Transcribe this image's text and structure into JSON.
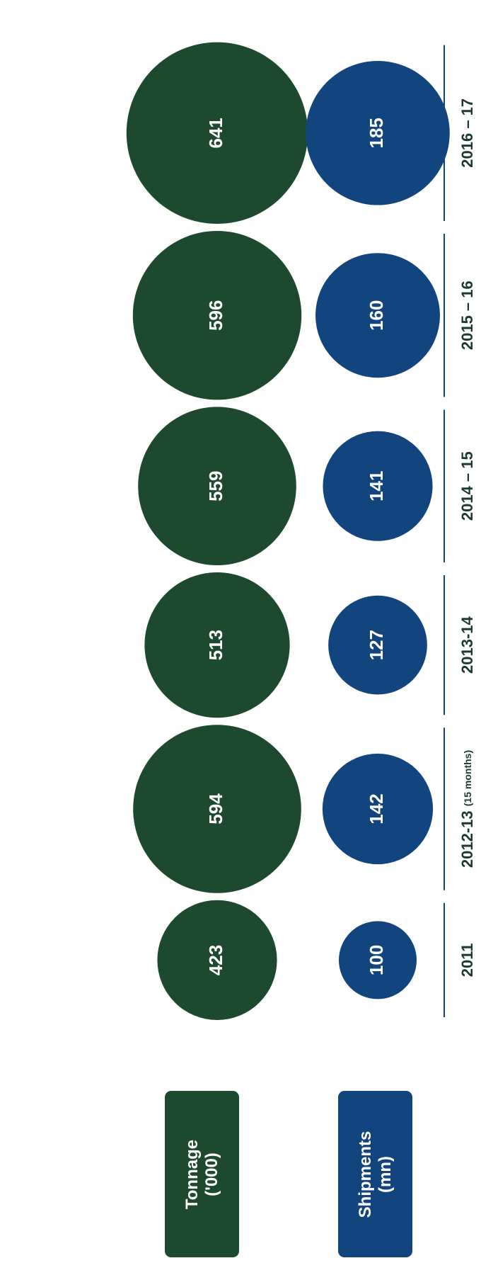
{
  "chart_data": {
    "type": "bubble",
    "categories": [
      "2011",
      "2012-13",
      "2013-14",
      "2014 – 15",
      "2015 – 16",
      "2016 – 17"
    ],
    "category_notes": [
      null,
      "(15 months)",
      null,
      null,
      null,
      null
    ],
    "series": [
      {
        "name": "Tonnage ('000)",
        "color": "#1d4a2f",
        "values": [
          423,
          594,
          513,
          559,
          596,
          641
        ]
      },
      {
        "name": "Shipments (mn)",
        "color": "#12447e",
        "values": [
          100,
          142,
          127,
          141,
          160,
          185
        ]
      }
    ]
  }
}
